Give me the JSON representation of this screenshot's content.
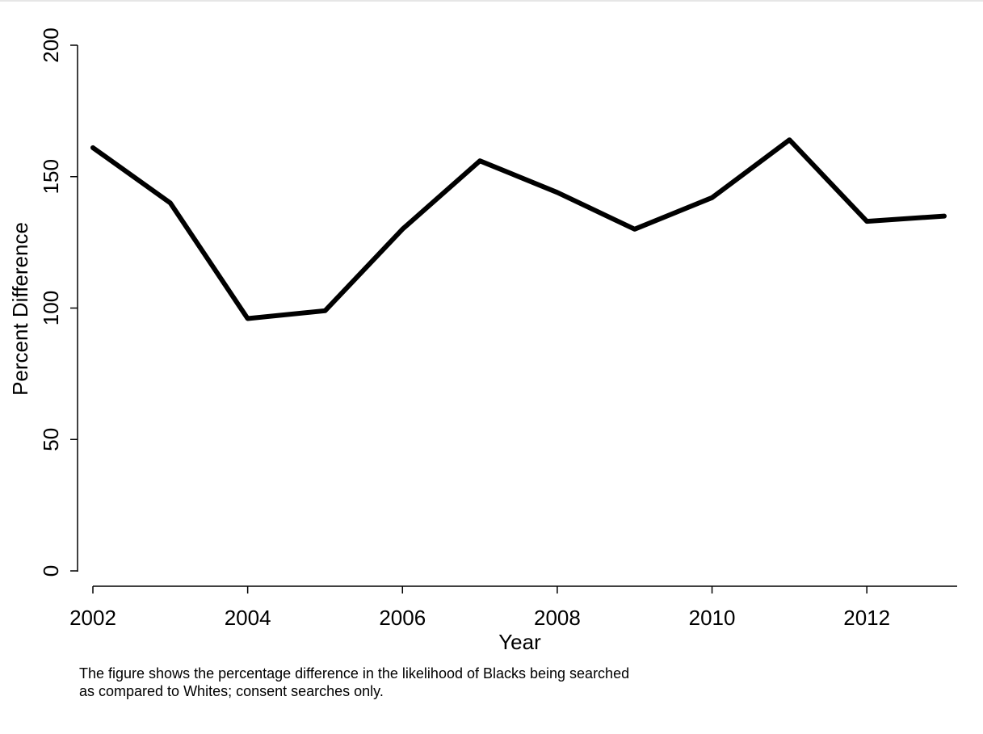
{
  "chart_data": {
    "type": "line",
    "title": "",
    "xlabel": "Year",
    "ylabel": "Percent Difference",
    "xlim": [
      2002,
      2013
    ],
    "ylim": [
      0,
      200
    ],
    "xticks": [
      2002,
      2004,
      2006,
      2008,
      2010,
      2012
    ],
    "yticks": [
      0,
      50,
      100,
      150,
      200
    ],
    "grid": false,
    "legend": "none",
    "series": [
      {
        "x": [
          2002,
          2003,
          2004,
          2005,
          2006,
          2007,
          2008,
          2009,
          2010,
          2011,
          2012,
          2013
        ],
        "y": [
          161,
          140,
          96,
          99,
          130,
          156,
          144,
          130,
          142,
          164,
          133,
          135
        ],
        "color": "#000000"
      }
    ]
  },
  "note": {
    "line1": "The figure shows the percentage difference in the likelihood of Blacks being searched",
    "line2": "as compared to Whites; consent searches only."
  }
}
